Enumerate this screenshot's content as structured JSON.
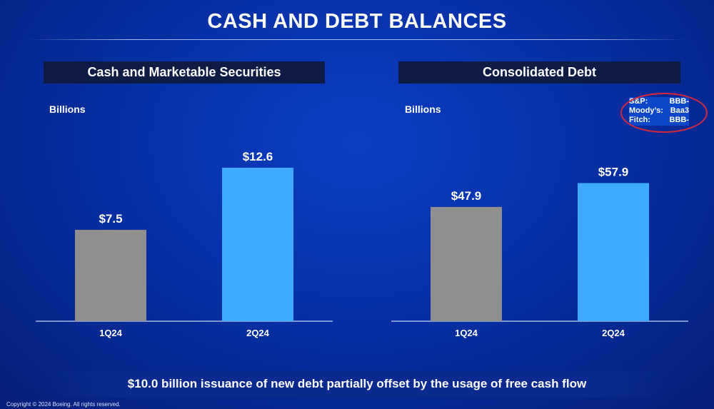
{
  "title": "CASH AND DEBT BALANCES",
  "footer_note": "$10.0 billion issuance of new debt partially offset by the usage of free cash flow",
  "copyright": "Copyright © 2024 Boeing. All rights reserved.",
  "ratings": [
    {
      "agency": "S&P:",
      "rating": "BBB-"
    },
    {
      "agency": "Moody’s:",
      "rating": "Baa3"
    },
    {
      "agency": "Fitch:",
      "rating": "BBB-"
    }
  ],
  "chart_data": [
    {
      "type": "bar",
      "title": "Cash and Marketable Securities",
      "ylabel": "Billions",
      "categories": [
        "1Q24",
        "2Q24"
      ],
      "values": [
        7.5,
        12.6
      ],
      "data_labels": [
        "$7.5",
        "$12.6"
      ],
      "colors": [
        "#8f8f8f",
        "#3fa8ff"
      ]
    },
    {
      "type": "bar",
      "title": "Consolidated Debt",
      "ylabel": "Billions",
      "categories": [
        "1Q24",
        "2Q24"
      ],
      "values": [
        47.9,
        57.9
      ],
      "data_labels": [
        "$47.9",
        "$57.9"
      ],
      "colors": [
        "#8f8f8f",
        "#3fa8ff"
      ]
    }
  ]
}
